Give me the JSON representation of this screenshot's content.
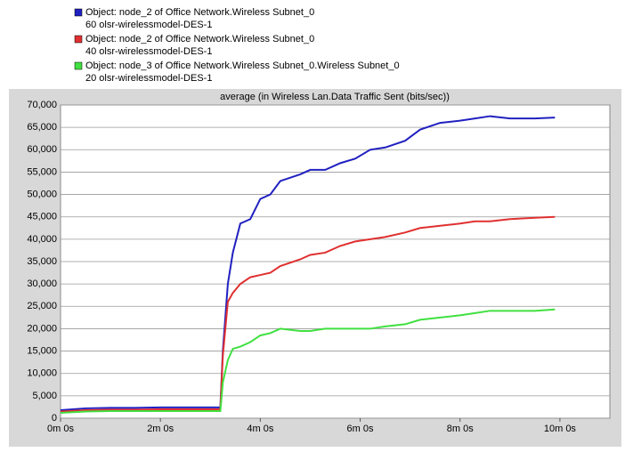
{
  "chart_data": {
    "type": "line",
    "title": "average (in Wireless Lan.Data Traffic Sent (bits/sec))",
    "x": [
      0,
      0.5,
      1,
      1.5,
      2,
      2.5,
      3,
      3.2,
      3.25,
      3.35,
      3.45,
      3.6,
      3.8,
      4.0,
      4.2,
      4.4,
      4.8,
      5.0,
      5.3,
      5.6,
      5.9,
      6.2,
      6.5,
      6.9,
      7.2,
      7.6,
      8.0,
      8.3,
      8.6,
      9.0,
      9.5,
      9.9
    ],
    "series": [
      {
        "name": "Object: node_2 of Office Network.Wireless Subnet_0",
        "description": "60 olsr-wirelessmodel-DES-1",
        "color": "#2020c0",
        "values": [
          1800,
          2200,
          2300,
          2300,
          2400,
          2400,
          2400,
          2400,
          15000,
          30000,
          37000,
          43500,
          44500,
          49000,
          50000,
          53000,
          54500,
          55500,
          55500,
          57000,
          58000,
          60000,
          60500,
          62000,
          64500,
          66000,
          66500,
          67000,
          67500,
          67000,
          67000,
          67200
        ]
      },
      {
        "name": "Object: node_2 of Office Network.Wireless Subnet_0",
        "description": "40 olsr-wirelessmodel-DES-1",
        "color": "#e03030",
        "values": [
          1500,
          1800,
          1900,
          1900,
          2000,
          2000,
          2000,
          2000,
          14000,
          26000,
          28000,
          30000,
          31500,
          32000,
          32500,
          34000,
          35500,
          36500,
          37000,
          38500,
          39500,
          40000,
          40500,
          41500,
          42500,
          43000,
          43500,
          44000,
          44000,
          44500,
          44800,
          45000
        ]
      },
      {
        "name": "Object: node_3 of Office Network.Wireless Subnet_0.Wireless Subnet_0",
        "description": "20 olsr-wirelessmodel-DES-1",
        "color": "#40e040",
        "values": [
          1200,
          1500,
          1600,
          1600,
          1600,
          1600,
          1600,
          1600,
          8000,
          13000,
          15500,
          16000,
          17000,
          18500,
          19000,
          20000,
          19500,
          19500,
          20000,
          20000,
          20000,
          20000,
          20500,
          21000,
          22000,
          22500,
          23000,
          23500,
          24000,
          24000,
          24000,
          24300
        ]
      }
    ],
    "xlim": [
      0,
      11
    ],
    "xticks": [
      {
        "value": 0,
        "label": "0m 0s"
      },
      {
        "value": 2,
        "label": "2m 0s"
      },
      {
        "value": 4,
        "label": "4m 0s"
      },
      {
        "value": 6,
        "label": "6m 0s"
      },
      {
        "value": 8,
        "label": "8m 0s"
      },
      {
        "value": 10,
        "label": "10m 0s"
      }
    ],
    "ylim": [
      0,
      70000
    ],
    "yticks": [
      0,
      {
        "value": 5000,
        "label": "5,000"
      },
      {
        "value": 10000,
        "label": "10,000"
      },
      {
        "value": 15000,
        "label": "15,000"
      },
      {
        "value": 20000,
        "label": "20,000"
      },
      {
        "value": 25000,
        "label": "25,000"
      },
      {
        "value": 30000,
        "label": "30,000"
      },
      {
        "value": 35000,
        "label": "35,000"
      },
      {
        "value": 40000,
        "label": "40,000"
      },
      {
        "value": 45000,
        "label": "45,000"
      },
      {
        "value": 50000,
        "label": "50,000"
      },
      {
        "value": 55000,
        "label": "55,000"
      },
      {
        "value": 60000,
        "label": "60,000"
      },
      {
        "value": 65000,
        "label": "65,000"
      },
      {
        "value": 70000,
        "label": "70,000"
      }
    ],
    "grid": true
  }
}
